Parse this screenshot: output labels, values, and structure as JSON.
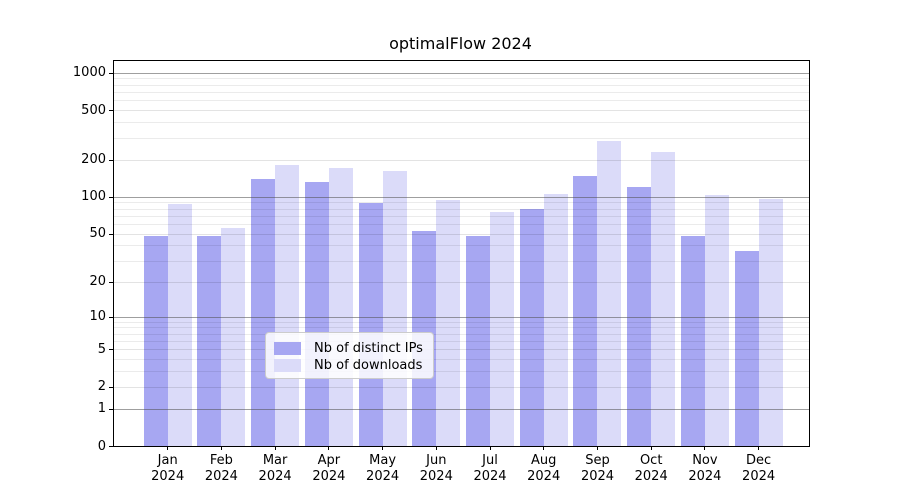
{
  "chart_data": {
    "type": "bar",
    "title": "optimalFlow 2024",
    "categories": [
      "Jan",
      "Feb",
      "Mar",
      "Apr",
      "May",
      "Jun",
      "Jul",
      "Aug",
      "Sep",
      "Oct",
      "Nov",
      "Dec"
    ],
    "category_year": "2024",
    "series": [
      {
        "name": "Nb of distinct IPs",
        "color": "#a7a7f2",
        "values": [
          48,
          48,
          139,
          132,
          89,
          53,
          48,
          79,
          147,
          120,
          48,
          36
        ]
      },
      {
        "name": "Nb of downloads",
        "color": "#dbdbf9",
        "values": [
          87,
          56,
          180,
          170,
          160,
          94,
          75,
          106,
          280,
          232,
          104,
          96
        ]
      }
    ],
    "y_axis": {
      "scale": "log1p",
      "major_ticks": [
        0,
        1,
        2,
        5,
        10,
        20,
        50,
        100,
        200,
        500,
        1000
      ],
      "decade_ticks": [
        1,
        10,
        100,
        1000
      ],
      "minor_ticks": [
        3,
        4,
        6,
        7,
        8,
        9,
        30,
        40,
        60,
        70,
        80,
        90,
        300,
        400,
        600,
        700,
        800,
        900
      ],
      "range": [
        0,
        1250
      ]
    },
    "legend_position": "lower center",
    "grid": true
  }
}
